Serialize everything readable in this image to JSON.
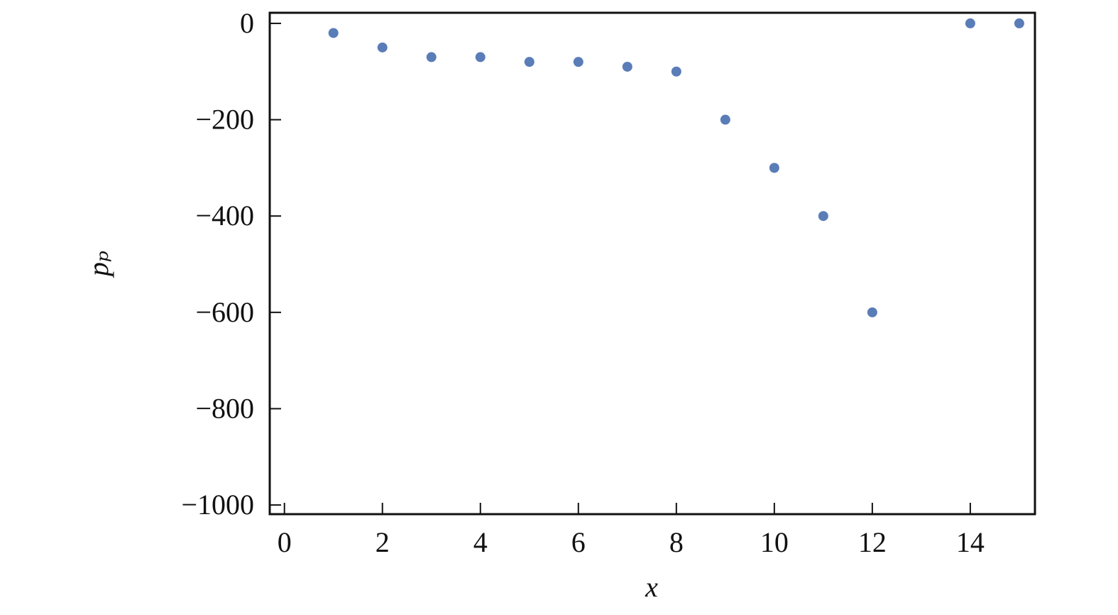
{
  "chart_data": {
    "type": "scatter",
    "x_label": "x",
    "y_label": "pₚ",
    "color": "#5a7db8",
    "x": [
      1,
      2,
      3,
      4,
      5,
      6,
      7,
      8,
      9,
      10,
      11,
      12,
      14,
      15
    ],
    "values": [
      -20,
      -50,
      -70,
      -70,
      -80,
      -80,
      -90,
      -100,
      -200,
      -300,
      -400,
      -600,
      0,
      0
    ],
    "xlim": [
      -0.3,
      15.32
    ],
    "ylim": [
      -1019,
      22
    ],
    "xticks": [
      0,
      2,
      4,
      6,
      8,
      10,
      12,
      14
    ],
    "yticks": [
      {
        "value": -1000,
        "label": "−1000"
      },
      {
        "value": -800,
        "label": "−800"
      },
      {
        "value": -600,
        "label": "−600"
      },
      {
        "value": -400,
        "label": "−400"
      },
      {
        "value": -200,
        "label": "−200"
      },
      0
    ],
    "grid": false
  }
}
